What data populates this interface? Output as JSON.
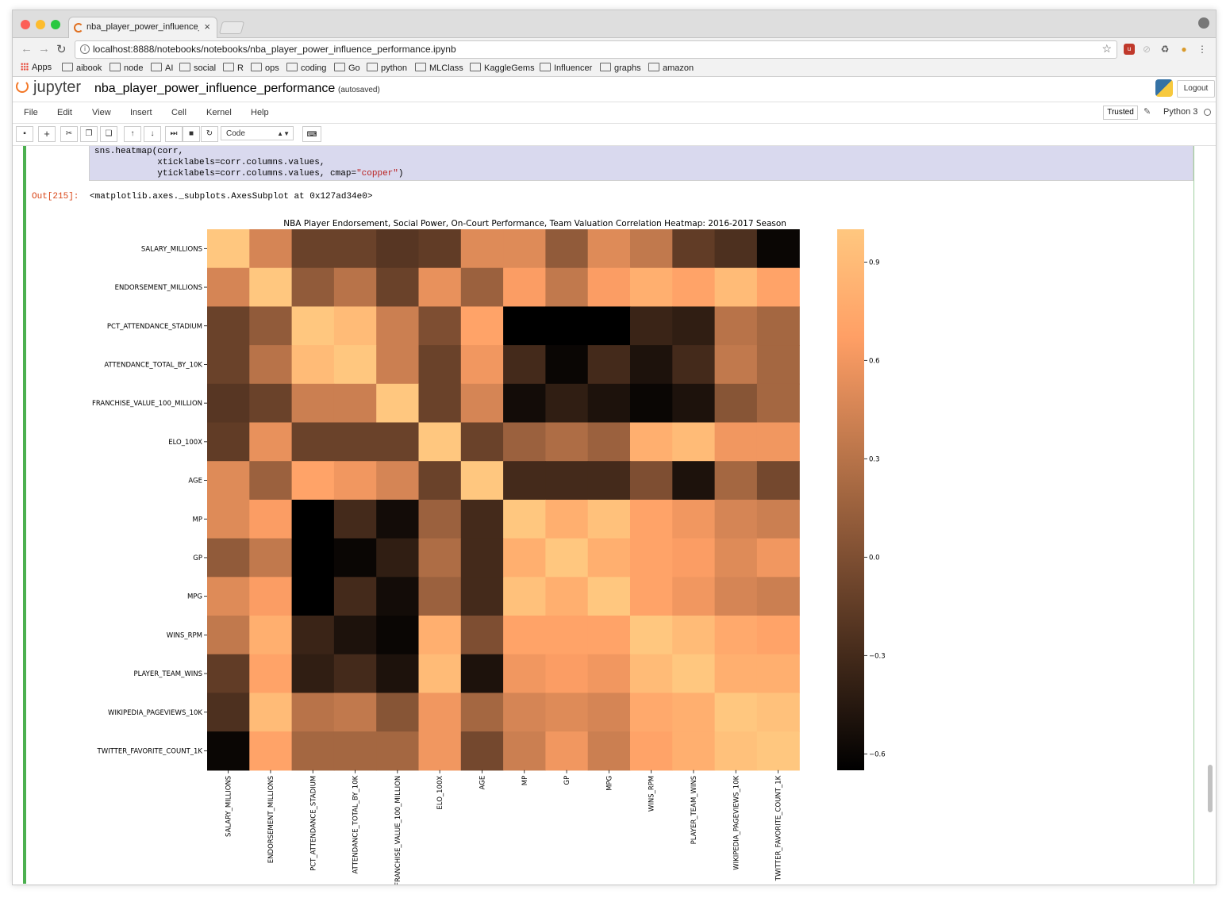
{
  "browser": {
    "tab_title": "nba_player_power_influence_p",
    "tab_close": "×",
    "address": "localhost:8888/notebooks/notebooks/nba_player_power_influence_performance.ipynb",
    "bookmarks": [
      "Apps",
      "aibook",
      "node",
      "AI",
      "social",
      "R",
      "ops",
      "coding",
      "Go",
      "python",
      "MLClass",
      "KaggleGems",
      "Influencer",
      "graphs",
      "amazon"
    ]
  },
  "jupyter": {
    "logo_text": "jupyter",
    "notebook_name": "nba_player_power_influence_performance",
    "save_status": "(autosaved)",
    "logout": "Logout",
    "menu": [
      "File",
      "Edit",
      "View",
      "Insert",
      "Cell",
      "Kernel",
      "Help"
    ],
    "trusted": "Trusted",
    "kernel": "Python 3",
    "cell_type": "Code"
  },
  "cell": {
    "code_line1": "sns.heatmap(corr,",
    "code_line2": "            xticklabels=corr.columns.values,",
    "code_line3_a": "            yticklabels=corr.columns.values, cmap=",
    "code_line3_str": "\"copper\"",
    "code_line3_b": ")",
    "out_prompt": "Out[215]:",
    "out_text": "<matplotlib.axes._subplots.AxesSubplot at 0x127ad34e0>"
  },
  "chart_data": {
    "type": "heatmap",
    "title": "NBA Player Endorsement, Social Power, On-Court Performance, Team Valuation Correlation Heatmap:  2016-2017 Season",
    "colormap": "copper",
    "labels": [
      "SALARY_MILLIONS",
      "ENDORSEMENT_MILLIONS",
      "PCT_ATTENDANCE_STADIUM",
      "ATTENDANCE_TOTAL_BY_10K",
      "FRANCHISE_VALUE_100_MILLION",
      "ELO_100X",
      "AGE",
      "MP",
      "GP",
      "MPG",
      "WINS_RPM",
      "PLAYER_TEAM_WINS",
      "WIKIPEDIA_PAGEVIEWS_10K",
      "TWITTER_FAVORITE_COUNT_1K"
    ],
    "vmin": -0.65,
    "vmax": 1.0,
    "colorbar_ticks": [
      0.9,
      0.6,
      0.3,
      0.0,
      -0.3,
      -0.6
    ],
    "colorbar_tick_labels": [
      "0.9",
      "0.6",
      "0.3",
      "0.0",
      "−0.3",
      "−0.6"
    ],
    "values": [
      [
        1.0,
        0.45,
        -0.1,
        -0.1,
        -0.2,
        -0.15,
        0.5,
        0.5,
        0.1,
        0.5,
        0.35,
        -0.15,
        -0.25,
        -0.6
      ],
      [
        0.45,
        1.0,
        0.1,
        0.3,
        -0.1,
        0.55,
        0.15,
        0.65,
        0.35,
        0.65,
        0.8,
        0.7,
        0.9,
        0.7
      ],
      [
        -0.1,
        0.1,
        1.0,
        0.9,
        0.4,
        0.0,
        0.7,
        -0.65,
        -0.65,
        -0.65,
        -0.35,
        -0.4,
        0.3,
        0.2
      ],
      [
        -0.1,
        0.3,
        0.9,
        1.0,
        0.4,
        -0.1,
        0.6,
        -0.3,
        -0.6,
        -0.3,
        -0.5,
        -0.3,
        0.35,
        0.2
      ],
      [
        -0.2,
        -0.1,
        0.4,
        0.4,
        1.0,
        -0.1,
        0.45,
        -0.55,
        -0.4,
        -0.5,
        -0.6,
        -0.5,
        0.05,
        0.2
      ],
      [
        -0.15,
        0.55,
        -0.1,
        -0.1,
        -0.1,
        1.0,
        -0.1,
        0.15,
        0.25,
        0.15,
        0.8,
        0.9,
        0.6,
        0.6
      ],
      [
        0.5,
        0.15,
        0.7,
        0.6,
        0.45,
        -0.1,
        1.0,
        -0.3,
        -0.3,
        -0.3,
        0.0,
        -0.5,
        0.2,
        -0.05
      ],
      [
        0.5,
        0.65,
        -0.65,
        -0.3,
        -0.55,
        0.15,
        -0.3,
        1.0,
        0.8,
        0.95,
        0.7,
        0.6,
        0.45,
        0.4
      ],
      [
        0.1,
        0.35,
        -0.65,
        -0.6,
        -0.4,
        0.25,
        -0.3,
        0.8,
        1.0,
        0.8,
        0.7,
        0.65,
        0.5,
        0.6
      ],
      [
        0.5,
        0.65,
        -0.65,
        -0.3,
        -0.55,
        0.15,
        -0.3,
        0.95,
        0.8,
        1.0,
        0.7,
        0.6,
        0.45,
        0.4
      ],
      [
        0.35,
        0.8,
        -0.35,
        -0.5,
        -0.6,
        0.8,
        0.0,
        0.7,
        0.7,
        0.7,
        1.0,
        0.9,
        0.75,
        0.7
      ],
      [
        -0.15,
        0.7,
        -0.4,
        -0.3,
        -0.5,
        0.9,
        -0.5,
        0.6,
        0.65,
        0.6,
        0.9,
        1.0,
        0.8,
        0.8
      ],
      [
        -0.25,
        0.9,
        0.3,
        0.35,
        0.05,
        0.6,
        0.2,
        0.45,
        0.5,
        0.45,
        0.75,
        0.8,
        1.0,
        0.95
      ],
      [
        -0.6,
        0.7,
        0.2,
        0.2,
        0.2,
        0.6,
        -0.05,
        0.4,
        0.6,
        0.4,
        0.7,
        0.8,
        0.95,
        1.0
      ]
    ]
  }
}
